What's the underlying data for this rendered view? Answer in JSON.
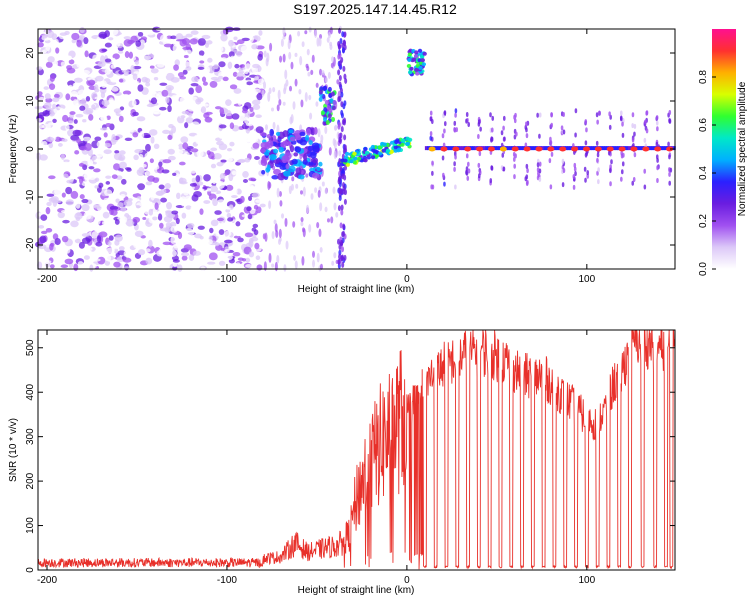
{
  "chart_data": [
    {
      "type": "heatmap",
      "title": "S197.2025.147.14.45.R12",
      "xlabel": "Height of straight line (km)",
      "ylabel": "Frequency (Hz)",
      "xlim": [
        -205,
        149
      ],
      "ylim": [
        -25,
        25
      ],
      "x_ticks": [
        -200,
        -100,
        0,
        100
      ],
      "y_ticks": [
        -20,
        -10,
        0,
        10,
        20
      ],
      "colorbar": {
        "label": "Normalized spectral amplitude",
        "range": [
          0,
          1
        ],
        "ticks": [
          0.0,
          0.2,
          0.4,
          0.6,
          0.8
        ],
        "colors": [
          "#ffffff",
          "#dcc8f8",
          "#a050f0",
          "#6a1de0",
          "#2b20ff",
          "#00b0ff",
          "#00e8c8",
          "#30ff30",
          "#d8ff00",
          "#ffb000",
          "#ff3030",
          "#ff1090"
        ]
      },
      "regions": [
        {
          "name": "noise",
          "x_range": [
            -205,
            -80
          ],
          "frequency_range": [
            -25,
            25
          ],
          "typical_amplitude": 0.15
        },
        {
          "name": "onset_cluster",
          "x_range": [
            -80,
            -48
          ],
          "frequency_center": -1,
          "typical_amplitude": 0.35
        },
        {
          "name": "line_segment",
          "x_range": [
            -36,
            2
          ],
          "frequency_start": -2.5,
          "frequency_end": 1.5,
          "typical_amplitude": 0.5
        },
        {
          "name": "blob_high",
          "x_range": [
            1,
            10
          ],
          "frequency_center": 18,
          "typical_amplitude": 0.4
        },
        {
          "name": "blob_mid",
          "x_range": [
            -48,
            -40
          ],
          "frequency_center": 9,
          "typical_amplitude": 0.35
        },
        {
          "name": "steady_line",
          "x_range": [
            10,
            149
          ],
          "frequency_center": 0,
          "typical_amplitude": 0.9
        }
      ]
    },
    {
      "type": "line",
      "xlabel": "Height of straight line (km)",
      "ylabel": "SNR (10 * v/v)",
      "xlim": [
        -205,
        149
      ],
      "ylim": [
        0,
        540
      ],
      "x_ticks": [
        -200,
        -100,
        0,
        100
      ],
      "y_ticks": [
        0,
        100,
        200,
        300,
        400,
        500
      ],
      "color": "#e8302a",
      "series": [
        {
          "x": [
            -205,
            -190,
            -170,
            -150,
            -130,
            -110,
            -90,
            -80,
            -70,
            -62,
            -55,
            -45,
            -38,
            -32,
            -28,
            -24,
            -20,
            -15,
            -10,
            -5,
            0,
            5,
            10,
            15,
            20,
            25,
            30,
            35,
            40,
            45,
            50,
            55,
            60,
            65,
            70,
            75,
            80,
            85,
            90,
            95,
            100,
            105,
            110,
            115,
            120,
            125,
            130,
            135,
            140,
            145,
            149
          ],
          "y": [
            15,
            20,
            18,
            20,
            18,
            20,
            22,
            25,
            30,
            60,
            40,
            50,
            55,
            80,
            160,
            210,
            240,
            280,
            310,
            330,
            360,
            380,
            420,
            440,
            460,
            470,
            480,
            490,
            495,
            490,
            480,
            470,
            450,
            440,
            430,
            440,
            420,
            400,
            380,
            360,
            340,
            330,
            360,
            420,
            450,
            520,
            520,
            510,
            500,
            505,
            510
          ]
        }
      ],
      "dropouts_x": [
        10,
        16,
        22,
        28,
        34,
        40,
        46,
        52,
        58,
        64,
        70,
        76,
        82,
        88,
        94,
        100,
        106,
        112,
        118,
        124,
        131,
        138,
        144,
        147
      ],
      "bottom_noise_level": 15
    }
  ]
}
